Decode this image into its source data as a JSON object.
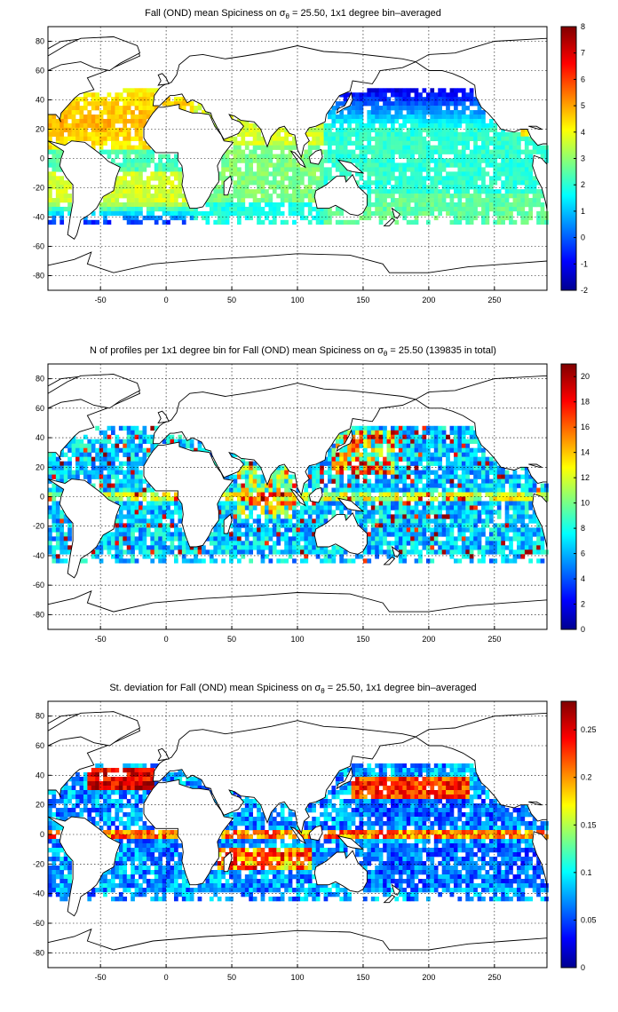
{
  "panels": [
    {
      "id": "spice",
      "title_pre": "Fall (OND) mean Spiciness on ",
      "title_sym": "σ",
      "title_sub": "θ",
      "title_post": " = 25.50, 1x1 degree bin–averaged",
      "colorbar": {
        "min": -2,
        "max": 8,
        "ticks": [
          "-2",
          "-1",
          "0",
          "1",
          "2",
          "3",
          "4",
          "5",
          "6",
          "7",
          "8"
        ]
      }
    },
    {
      "id": "count",
      "title_pre": "N of profiles per 1x1 degree bin for Fall (OND) mean Spiciness on ",
      "title_sym": "σ",
      "title_sub": "θ",
      "title_post": " = 25.50 (139835 in total)",
      "colorbar": {
        "min": 0,
        "max": 21,
        "ticks": [
          "0",
          "2",
          "4",
          "6",
          "8",
          "10",
          "12",
          "14",
          "16",
          "18",
          "20"
        ]
      }
    },
    {
      "id": "std",
      "title_pre": "St. deviation for Fall (OND) mean Spiciness on ",
      "title_sym": "σ",
      "title_sub": "θ",
      "title_post": " = 25.50, 1x1 degree bin–averaged",
      "colorbar": {
        "min": 0,
        "max": 0.28,
        "ticks": [
          "0",
          "0.05",
          "0.1",
          "0.15",
          "0.2",
          "0.25"
        ]
      }
    }
  ],
  "axes": {
    "x_ticks": [
      "-50",
      "0",
      "50",
      "100",
      "150",
      "200",
      "250"
    ],
    "y_ticks": [
      "80",
      "60",
      "40",
      "20",
      "0",
      "-20",
      "-40",
      "-60",
      "-80"
    ],
    "xlim": [
      -90,
      290
    ],
    "ylim": [
      -90,
      90
    ]
  },
  "chart_data": {
    "type": "heatmap",
    "colormap": "jet",
    "grid": true,
    "legend": "colorbar-right"
  }
}
